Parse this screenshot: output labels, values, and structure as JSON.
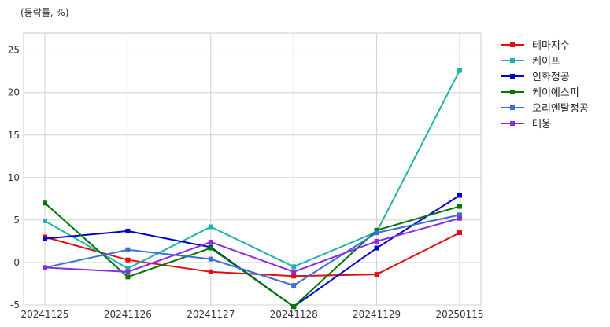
{
  "chart_data": {
    "type": "line",
    "unit_label": "(등락률, %)",
    "x": [
      "20241125",
      "20241126",
      "20241127",
      "20241128",
      "20241129",
      "20250115"
    ],
    "ylim": [
      -5,
      27
    ],
    "yticks": [
      -5,
      0,
      5,
      10,
      15,
      20,
      25
    ],
    "grid": true,
    "legend_position": "right",
    "series": [
      {
        "name": "테마지수",
        "color": "#dd1111",
        "values": [
          3.0,
          0.3,
          -1.1,
          -1.6,
          -1.4,
          3.5
        ]
      },
      {
        "name": "케이프",
        "color": "#22b0aa",
        "values": [
          4.9,
          -0.7,
          4.2,
          -0.5,
          3.6,
          22.6
        ]
      },
      {
        "name": "인화정공",
        "color": "#0000cc",
        "values": [
          2.8,
          3.7,
          1.8,
          -5.2,
          1.7,
          7.9
        ]
      },
      {
        "name": "케이에스피",
        "color": "#007700",
        "values": [
          7.0,
          -1.7,
          1.7,
          -5.2,
          3.8,
          6.6
        ]
      },
      {
        "name": "오리엔탈정공",
        "color": "#3a6fd8",
        "values": [
          -0.6,
          1.5,
          0.4,
          -2.7,
          3.5,
          5.6
        ]
      },
      {
        "name": "태웅",
        "color": "#8a2be2",
        "values": [
          -0.6,
          -1.1,
          2.4,
          -1.1,
          2.5,
          5.2
        ]
      }
    ]
  }
}
